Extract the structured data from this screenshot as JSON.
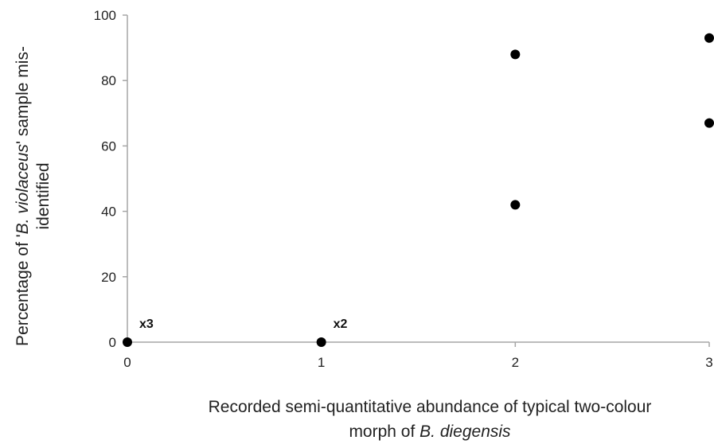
{
  "chart_data": {
    "type": "scatter",
    "title": "",
    "x_axis": {
      "min": 0,
      "max": 3,
      "ticks": [
        0,
        1,
        2,
        3
      ],
      "label_parts": [
        {
          "text": "Recorded semi-quantitative abundance of typical two-colour",
          "italic": false
        },
        {
          "text": "morph of ",
          "italic": false
        },
        {
          "text": "B. diegensis",
          "italic": true
        }
      ]
    },
    "y_axis": {
      "min": 0,
      "max": 100,
      "ticks": [
        0,
        20,
        40,
        60,
        80,
        100
      ],
      "label_parts": [
        {
          "text": "Percentage of '",
          "italic": false
        },
        {
          "text": "B. violaceus",
          "italic": true
        },
        {
          "text": "' sample mis-",
          "italic": false
        },
        {
          "text": "identified",
          "italic": false
        }
      ]
    },
    "points": [
      {
        "x": 0,
        "y": 0
      },
      {
        "x": 1,
        "y": 0
      },
      {
        "x": 2,
        "y": 88
      },
      {
        "x": 2,
        "y": 42
      },
      {
        "x": 3,
        "y": 93
      },
      {
        "x": 3,
        "y": 67
      }
    ],
    "annotations": [
      {
        "text": "x3",
        "x": 0,
        "y": 0
      },
      {
        "text": "x2",
        "x": 1,
        "y": 0
      }
    ],
    "grid": false,
    "legend": "none",
    "marker_color": "#000000",
    "axis_color": "#a6a6a6"
  }
}
